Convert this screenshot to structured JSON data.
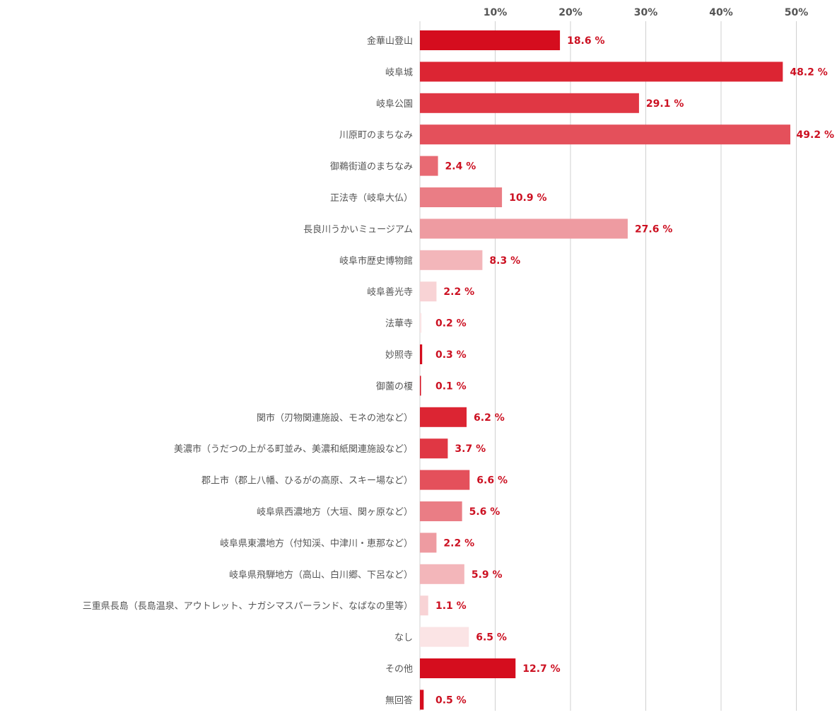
{
  "chart_data": {
    "type": "bar",
    "orientation": "horizontal",
    "title": "",
    "xlabel": "",
    "ylabel": "",
    "xlim": [
      0,
      50
    ],
    "ticks": [
      10,
      20,
      30,
      40,
      50
    ],
    "tick_labels": [
      "10%",
      "20%",
      "30%",
      "40%",
      "50%"
    ],
    "grid": true,
    "value_suffix": " %",
    "categories": [
      "金華山登山",
      "岐阜城",
      "岐阜公園",
      "川原町のまちなみ",
      "御鵜街道のまちなみ",
      "正法寺（岐阜大仏）",
      "長良川うかいミュージアム",
      "岐阜市歴史博物館",
      "岐阜善光寺",
      "法華寺",
      "妙照寺",
      "御薗の榎",
      "関市（刃物関連施設、モネの池など）",
      "美濃市（うだつの上がる町並み、美濃和紙関連施設など）",
      "郡上市（郡上八幡、ひるがの高原、スキー場など）",
      "岐阜県西濃地方（大垣、関ヶ原など）",
      "岐阜県東濃地方（付知渓、中津川・恵那など）",
      "岐阜県飛騨地方（高山、白川郷、下呂など）",
      "三重県長島（長島温泉、アウトレット、ナガシマスパーランド、なばなの里等）",
      "なし",
      "その他",
      "無回答"
    ],
    "values": [
      18.6,
      48.2,
      29.1,
      49.2,
      2.4,
      10.9,
      27.6,
      8.3,
      2.2,
      0.2,
      0.3,
      0.1,
      6.2,
      3.7,
      6.6,
      5.6,
      2.2,
      5.9,
      1.1,
      6.5,
      12.7,
      0.5
    ],
    "value_labels": [
      "18.6 %",
      "48.2 %",
      "29.1 %",
      "49.2 %",
      "2.4 %",
      "10.9 %",
      "27.6 %",
      "8.3 %",
      "2.2 %",
      "0.2 %",
      "0.3 %",
      "0.1 %",
      "6.2 %",
      "3.7 %",
      "6.6 %",
      "5.6 %",
      "2.2 %",
      "5.9 %",
      "1.1 %",
      "6.5 %",
      "12.7 %",
      "0.5 %"
    ],
    "bar_colors": [
      "#d50d1e",
      "#dc2533",
      "#e03744",
      "#e4505b",
      "#e86a73",
      "#ea7d85",
      "#ee9ba1",
      "#f3b6ba",
      "#f8d3d5",
      "#fbe4e5",
      "#d50d1e",
      "#d50d1e",
      "#dc2533",
      "#e03744",
      "#e4505b",
      "#ea7d85",
      "#ee9ba1",
      "#f3b6ba",
      "#f8d3d5",
      "#fbe4e5",
      "#d50d1e",
      "#d50d1e"
    ],
    "value_label_color": "#cc1122",
    "gridline_color": "#d0d0d0",
    "axis_text_color": "#555555"
  }
}
